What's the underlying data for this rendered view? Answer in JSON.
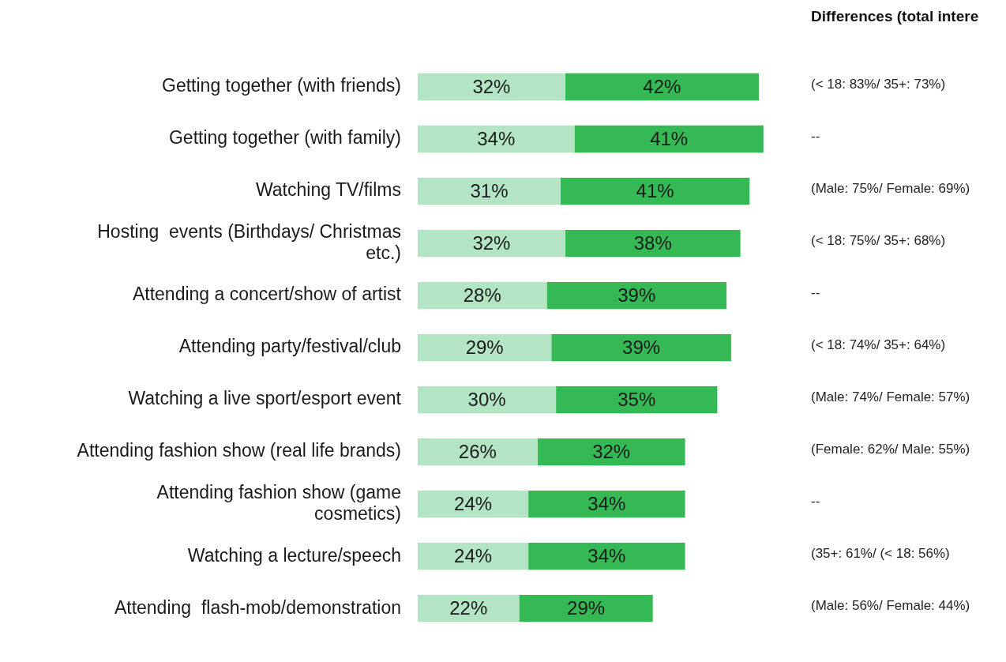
{
  "chart_data": {
    "type": "bar",
    "orientation": "horizontal",
    "stacked": true,
    "legend": false,
    "tick_labels": "y",
    "categories": [
      "Getting together (with friends)",
      "Getting together (with family)",
      "Watching TV/films",
      "Hosting  events (Birthdays/ Christmas etc.)",
      "Attending a concert/show of artist",
      "Attending party/festival/club",
      "Watching a live sport/esport event",
      "Attending fashion show (real life brands)",
      "Attending fashion show (game cosmetics)",
      "Watching a lecture/speech",
      "Attending  flash-mob/demonstration"
    ],
    "series": [
      {
        "color": "#b3e4c3",
        "values": [
          32,
          34,
          31,
          32,
          28,
          29,
          30,
          26,
          24,
          24,
          22
        ],
        "value_labels": [
          "32%",
          "34%",
          "31%",
          "32%",
          "28%",
          "29%",
          "30%",
          "26%",
          "24%",
          "24%",
          "22%"
        ]
      },
      {
        "color": "#35b955",
        "values": [
          42,
          41,
          41,
          38,
          39,
          39,
          35,
          32,
          34,
          34,
          29
        ],
        "value_labels": [
          "42%",
          "41%",
          "41%",
          "38%",
          "39%",
          "39%",
          "35%",
          "32%",
          "34%",
          "34%",
          "29%"
        ]
      }
    ],
    "annotations": [
      "Differences (total intere",
      "(< 18: 83%/ 35+: 73%)",
      "--",
      "(Male: 75%/ Female: 69%)",
      "(< 18: 75%/ 35+: 68%)",
      "--",
      "(< 18: 74%/ 35+: 64%)",
      "(Male: 74%/ Female: 57%)",
      "(Female: 62%/ Male: 55%)",
      "--",
      "(35+: 61%/ (< 18: 56%)",
      "(Male: 56%/ Female: 44%)"
    ]
  }
}
